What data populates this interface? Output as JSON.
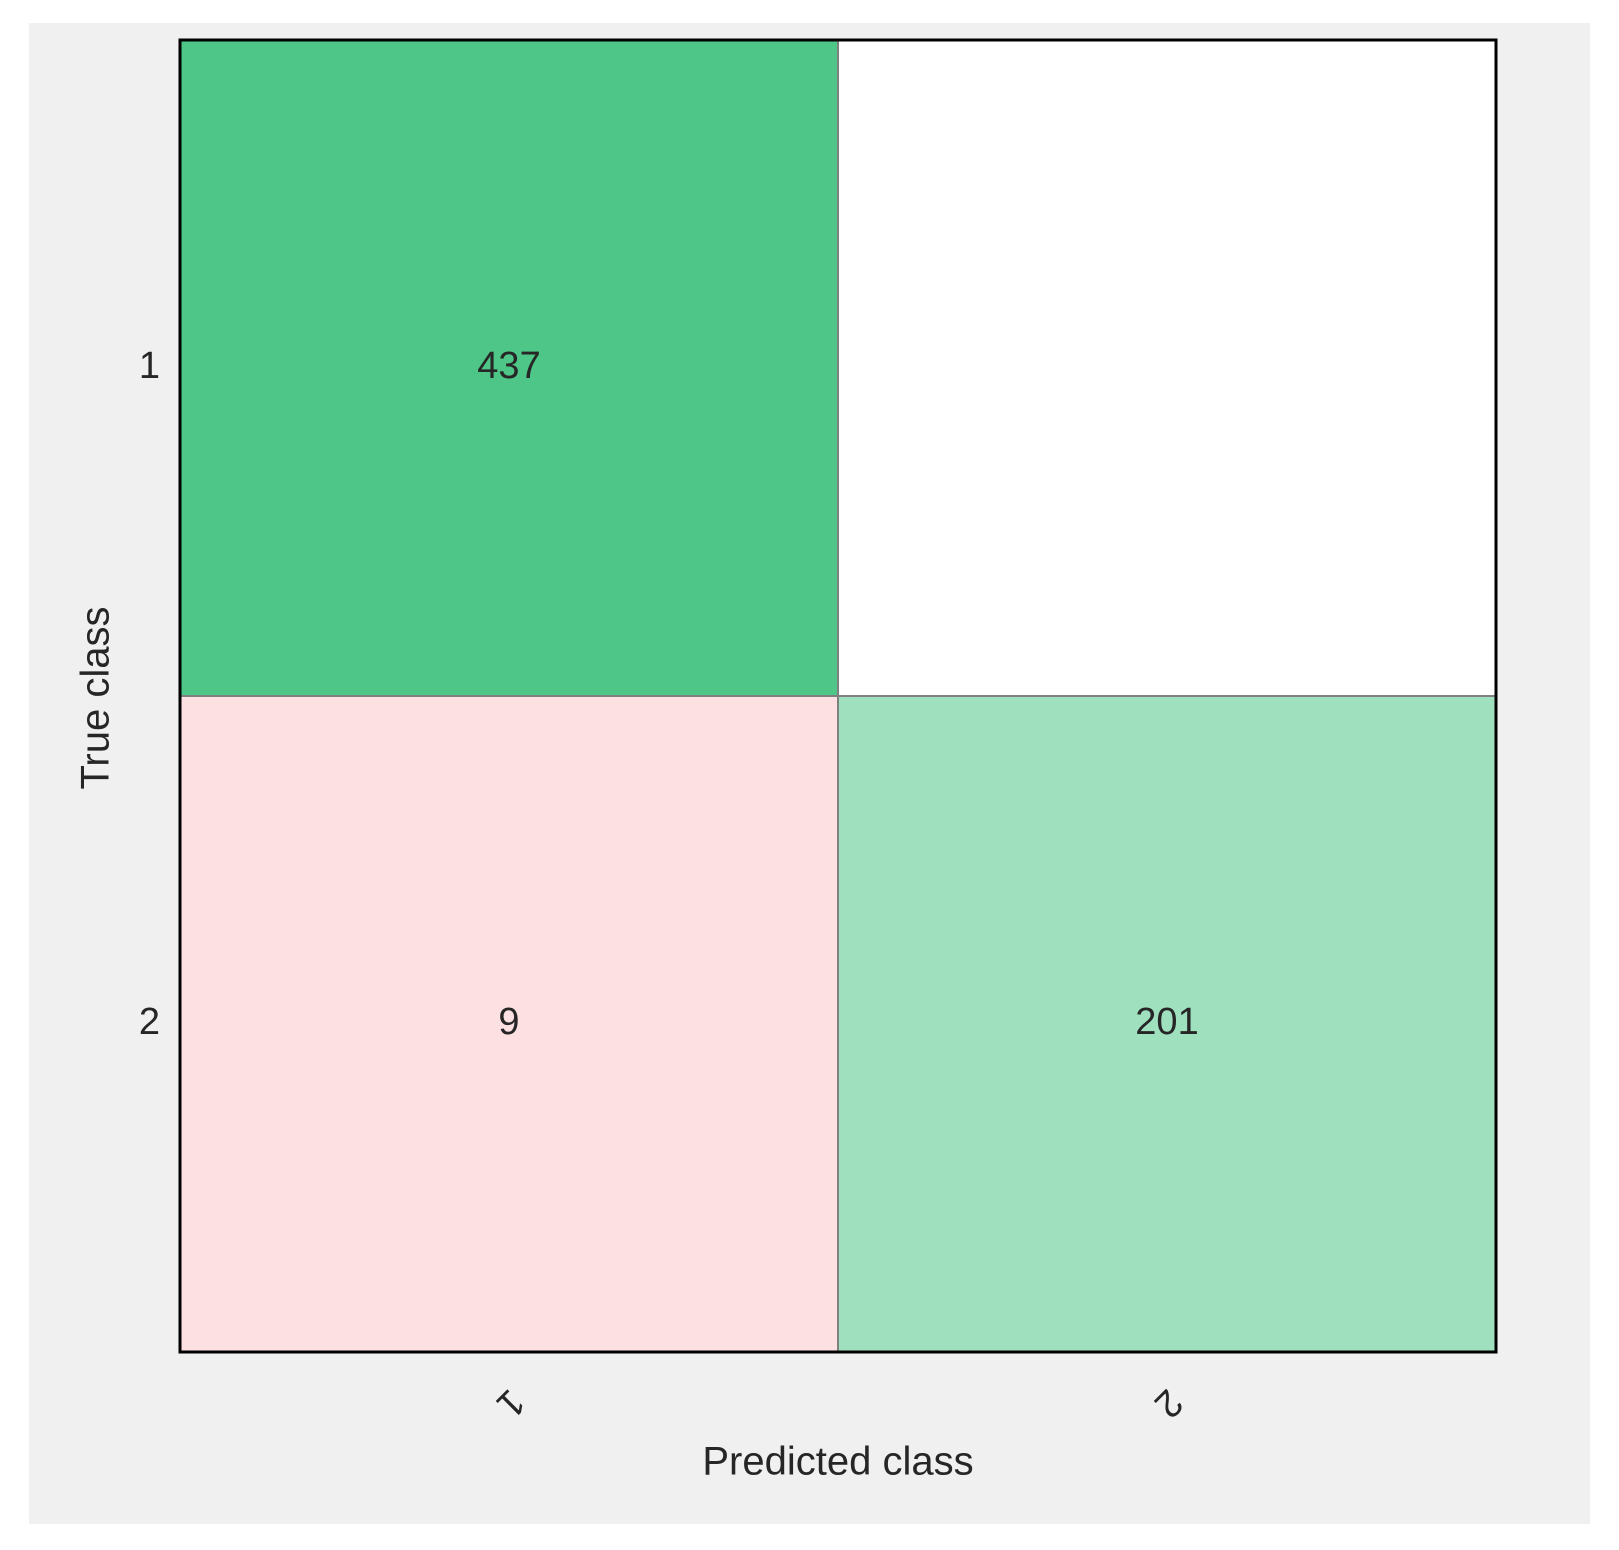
{
  "chart_data": {
    "type": "confusion_matrix",
    "x_label": "Predicted class",
    "y_label": "True class",
    "x_categories": [
      "1",
      "2"
    ],
    "y_categories": [
      "1",
      "2"
    ],
    "values": [
      [
        437,
        null
      ],
      [
        9,
        201
      ]
    ],
    "colors": [
      [
        "#4dc687",
        "#ffffff"
      ],
      [
        "#fde0e1",
        "#9fe1bf"
      ]
    ]
  }
}
